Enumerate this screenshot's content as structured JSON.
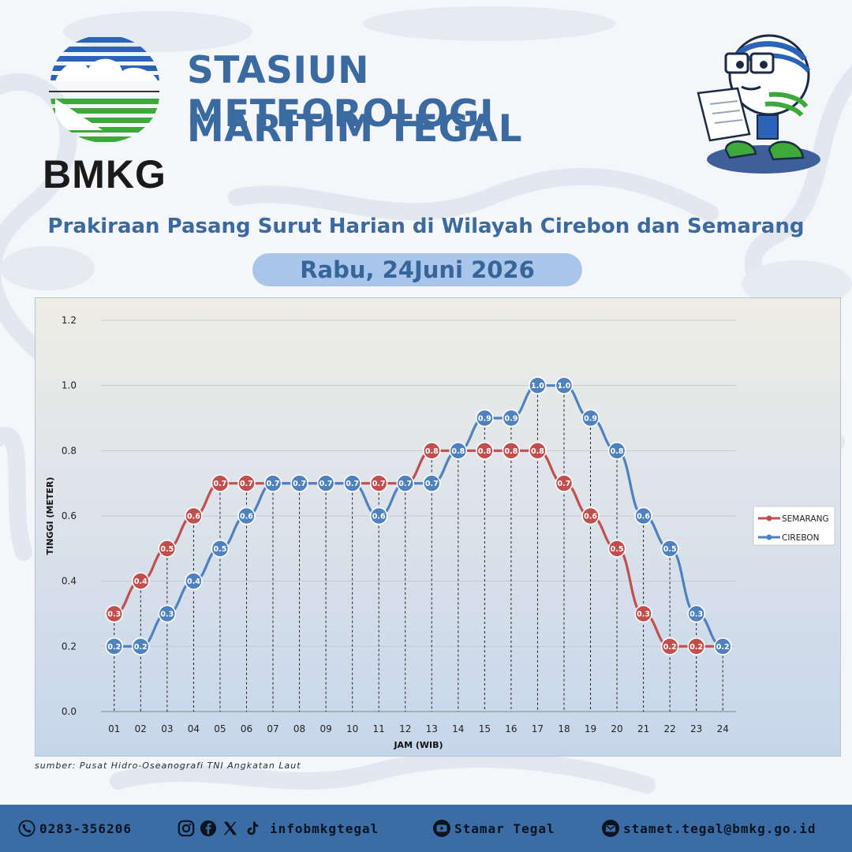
{
  "header": {
    "brand": "BMKG",
    "title_line1": "STASIUN METEOROLOGI",
    "title_line2": "MARITIM TEGAL",
    "subtitle": "Prakiraan Pasang Surut Harian di Wilayah Cirebon dan Semarang",
    "date": "Rabu, 24Juni 2026"
  },
  "source": "sumber: Pusat Hidro-Oseanografi TNI Angkatan Laut",
  "footer": {
    "phone": "0283-356206",
    "social": "infobmkgtegal",
    "youtube": "Stamar Tegal",
    "email": "stamet.tegal@bmkg.go.id"
  },
  "colors": {
    "semarang": "#c0504d",
    "cirebon": "#4f81bd",
    "title": "#3b6aa0",
    "footer_bg": "#3b6ca6"
  },
  "chart_data": {
    "type": "line",
    "xlabel": "JAM (WIB)",
    "ylabel": "TINGGI (METER)",
    "ylim": [
      0,
      1.2
    ],
    "yticks": [
      "0.0",
      "0.2",
      "0.4",
      "0.6",
      "0.8",
      "1.0",
      "1.2"
    ],
    "grid": true,
    "legend_position": "right",
    "categories": [
      "01",
      "02",
      "03",
      "04",
      "05",
      "06",
      "07",
      "08",
      "09",
      "10",
      "11",
      "12",
      "13",
      "14",
      "15",
      "16",
      "17",
      "18",
      "19",
      "20",
      "21",
      "22",
      "23",
      "24"
    ],
    "series": [
      {
        "name": "SEMARANG",
        "values": [
          0.3,
          0.4,
          0.5,
          0.6,
          0.7,
          0.7,
          0.7,
          0.7,
          0.7,
          0.7,
          0.7,
          0.7,
          0.8,
          0.8,
          0.8,
          0.8,
          0.8,
          0.7,
          0.6,
          0.5,
          0.3,
          0.2,
          0.2,
          0.2
        ],
        "labels": [
          "0.3",
          "0.4",
          "0.5",
          "0.6",
          "0.7",
          "0.7",
          "",
          "",
          "",
          "",
          "0.7",
          "",
          "0.8",
          "",
          "0.8",
          "0.8",
          "0.8",
          "0.7",
          "0.6",
          "0.5",
          "0.3",
          "0.2",
          "0.2",
          ""
        ]
      },
      {
        "name": "CIREBON",
        "values": [
          0.2,
          0.2,
          0.3,
          0.4,
          0.5,
          0.6,
          0.7,
          0.7,
          0.7,
          0.7,
          0.6,
          0.7,
          0.7,
          0.8,
          0.9,
          0.9,
          1.0,
          1.0,
          0.9,
          0.8,
          0.6,
          0.5,
          0.3,
          0.2
        ],
        "labels": [
          "0.2",
          "0.2",
          "0.3",
          "0.4",
          "0.5",
          "0.6",
          "0.7",
          "0.7",
          "0.7",
          "0.7",
          "0.6",
          "0.7",
          "0.7",
          "0.8",
          "0.9",
          "0.9",
          "1.0",
          "1.0",
          "0.9",
          "0.8",
          "0.6",
          "0.5",
          "0.3",
          "0.2"
        ]
      }
    ]
  }
}
